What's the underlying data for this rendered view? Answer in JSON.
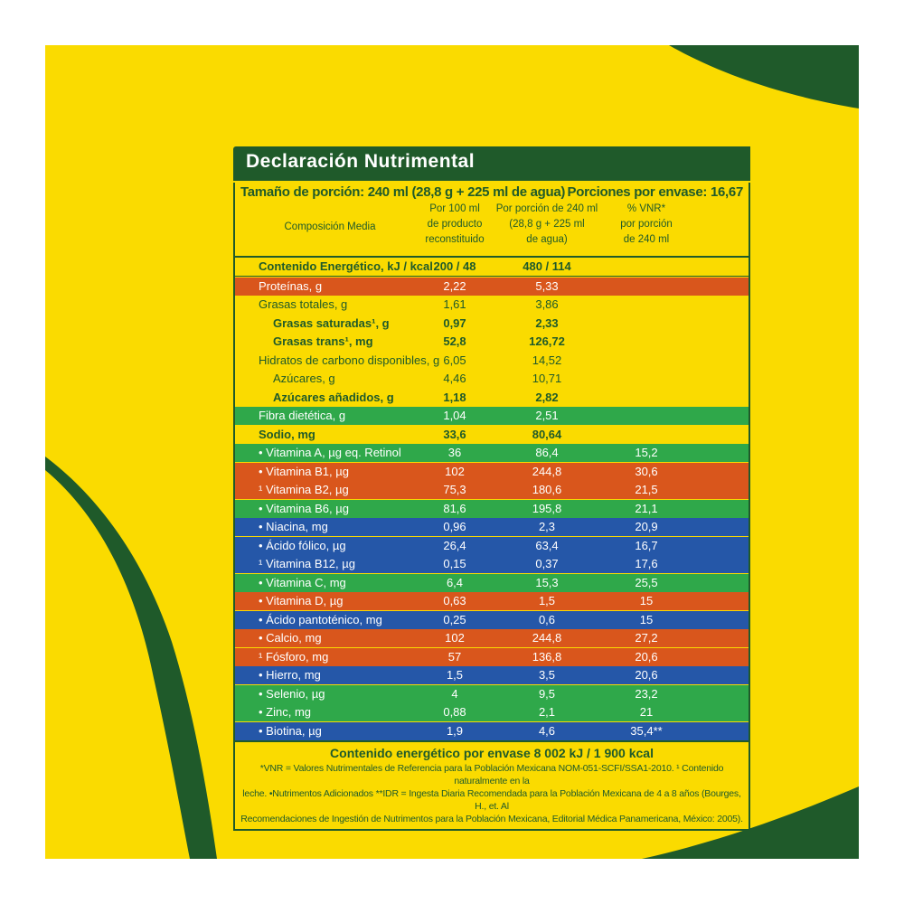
{
  "colors": {
    "background": "#fadb00",
    "dark_green": "#1f5a2a",
    "band_green": "#2fa84a",
    "band_orange": "#d9561c",
    "band_blue": "#2557a8",
    "band_yellow": "#fadb00"
  },
  "title": "Declaración Nutrimental",
  "portion": {
    "size": "Tamaño de porción: 240 ml (28,8 g + 225 ml de agua)",
    "count": "Porciones por envase: 16,67"
  },
  "headers": {
    "composition": "Composición Media",
    "per100": [
      "Por 100 ml",
      "de producto",
      "reconstituido"
    ],
    "perportion": [
      "Por porción de 240 ml",
      "(28,8 g + 225 ml",
      "de agua)"
    ],
    "vnr": [
      "% VNR*",
      "por porción",
      "de 240 ml"
    ]
  },
  "rows": [
    {
      "name": "Contenido Energético, kJ / kcal",
      "c1": "200 / 48",
      "c2": "480 / 114",
      "c3": "",
      "band": "yellow",
      "bold": true,
      "indent": 0
    },
    {
      "name": "Proteínas, g",
      "c1": "2,22",
      "c2": "5,33",
      "c3": "",
      "band": "orange",
      "bold": false,
      "indent": 0
    },
    {
      "name": "Grasas totales, g",
      "c1": "1,61",
      "c2": "3,86",
      "c3": "",
      "band": "yellow",
      "bold": false,
      "indent": 0
    },
    {
      "name": "Grasas saturadas¹, g",
      "c1": "0,97",
      "c2": "2,33",
      "c3": "",
      "band": "yellow",
      "bold": true,
      "indent": 1
    },
    {
      "name": "Grasas trans¹, mg",
      "c1": "52,8",
      "c2": "126,72",
      "c3": "",
      "band": "yellow",
      "bold": true,
      "indent": 1
    },
    {
      "name": "Hidratos de carbono disponibles, g",
      "c1": "6,05",
      "c2": "14,52",
      "c3": "",
      "band": "yellow",
      "bold": false,
      "indent": 0
    },
    {
      "name": "Azúcares, g",
      "c1": "4,46",
      "c2": "10,71",
      "c3": "",
      "band": "yellow",
      "bold": false,
      "indent": 1
    },
    {
      "name": "Azúcares añadidos, g",
      "c1": "1,18",
      "c2": "2,82",
      "c3": "",
      "band": "yellow",
      "bold": true,
      "indent": 1
    },
    {
      "name": "Fibra dietética, g",
      "c1": "1,04",
      "c2": "2,51",
      "c3": "",
      "band": "green",
      "bold": false,
      "indent": 0
    },
    {
      "name": "Sodio, mg",
      "c1": "33,6",
      "c2": "80,64",
      "c3": "",
      "band": "yellow",
      "bold": true,
      "indent": 0
    },
    {
      "name": "• Vitamina A, µg eq. Retinol",
      "c1": "36",
      "c2": "86,4",
      "c3": "15,2",
      "band": "green",
      "bold": false,
      "indent": 0
    },
    {
      "name": "• Vitamina B1, µg",
      "c1": "102",
      "c2": "244,8",
      "c3": "30,6",
      "band": "orange",
      "bold": false,
      "indent": 0
    },
    {
      "name": "¹ Vitamina B2, µg",
      "c1": "75,3",
      "c2": "180,6",
      "c3": "21,5",
      "band": "orange",
      "bold": false,
      "indent": 0
    },
    {
      "name": "• Vitamina B6, µg",
      "c1": "81,6",
      "c2": "195,8",
      "c3": "21,1",
      "band": "green",
      "bold": false,
      "indent": 0
    },
    {
      "name": "• Niacina, mg",
      "c1": "0,96",
      "c2": "2,3",
      "c3": "20,9",
      "band": "blue",
      "bold": false,
      "indent": 0
    },
    {
      "name": "• Ácido fólico, µg",
      "c1": "26,4",
      "c2": "63,4",
      "c3": "16,7",
      "band": "blue",
      "bold": false,
      "indent": 0
    },
    {
      "name": "¹ Vitamina B12, µg",
      "c1": "0,15",
      "c2": "0,37",
      "c3": "17,6",
      "band": "blue",
      "bold": false,
      "indent": 0
    },
    {
      "name": "• Vitamina C, mg",
      "c1": "6,4",
      "c2": "15,3",
      "c3": "25,5",
      "band": "green",
      "bold": false,
      "indent": 0
    },
    {
      "name": "• Vitamina D, µg",
      "c1": "0,63",
      "c2": "1,5",
      "c3": "15",
      "band": "orange",
      "bold": false,
      "indent": 0
    },
    {
      "name": "• Ácido pantoténico, mg",
      "c1": "0,25",
      "c2": "0,6",
      "c3": "15",
      "band": "blue",
      "bold": false,
      "indent": 0
    },
    {
      "name": "• Calcio, mg",
      "c1": "102",
      "c2": "244,8",
      "c3": "27,2",
      "band": "orange",
      "bold": false,
      "indent": 0
    },
    {
      "name": "¹ Fósforo, mg",
      "c1": "57",
      "c2": "136,8",
      "c3": "20,6",
      "band": "orange",
      "bold": false,
      "indent": 0
    },
    {
      "name": "• Hierro, mg",
      "c1": "1,5",
      "c2": "3,5",
      "c3": "20,6",
      "band": "blue",
      "bold": false,
      "indent": 0
    },
    {
      "name": "• Selenio, µg",
      "c1": "4",
      "c2": "9,5",
      "c3": "23,2",
      "band": "green",
      "bold": false,
      "indent": 0
    },
    {
      "name": "• Zinc, mg",
      "c1": "0,88",
      "c2": "2,1",
      "c3": "21",
      "band": "green",
      "bold": false,
      "indent": 0
    },
    {
      "name": "• Biotina, µg",
      "c1": "1,9",
      "c2": "4,6",
      "c3": "35,4**",
      "band": "blue",
      "bold": false,
      "indent": 0
    }
  ],
  "total_energy": "Contenido energético por envase 8 002 kJ / 1 900 kcal",
  "footnotes": [
    "*VNR = Valores Nutrimentales de Referencia para la Población Mexicana NOM-051-SCFI/SSA1-2010. ¹ Contenido naturalmente en la",
    "leche. •Nutrimentos Adicionados    **IDR = Ingesta Diaria Recomendada para la Población Mexicana de 4 a 8 años (Bourges, H., et. Al",
    "Recomendaciones de Ingestión de Nutrimentos para la Población Mexicana, Editorial Médica Panamericana, México: 2005)."
  ]
}
